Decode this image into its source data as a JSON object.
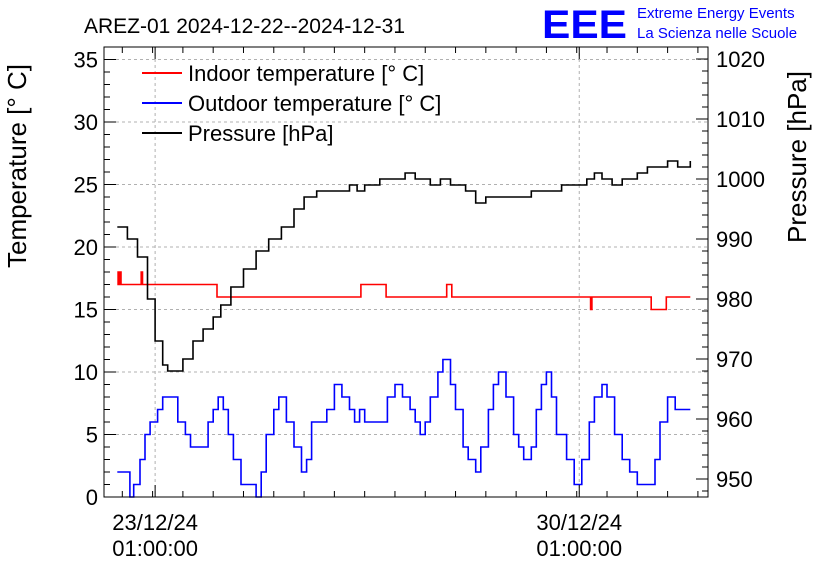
{
  "chart_data": {
    "type": "line",
    "title": "AREZ-01 2024-12-22--2024-12-31",
    "logo": {
      "mark": "EEE",
      "line1": "Extreme Energy Events",
      "line2": "La Scienza nelle Scuole",
      "color": "#0000ff"
    },
    "ylabel_left": "Temperature [° C]",
    "ylabel_right": "Pressure [hPa]",
    "ylim_left": [
      0,
      36
    ],
    "ylim_right": [
      947,
      1022
    ],
    "xlim": [
      "2024-12-22 04:45",
      "2025-01-01 04:00"
    ],
    "x_ticks": [
      {
        "x": "2024-12-23 01:00",
        "line1": "23/12/24",
        "line2": "01:00:00"
      },
      {
        "x": "2024-12-30 01:00",
        "line1": "30/12/24",
        "line2": "01:00:00"
      }
    ],
    "y_ticks_left": [
      "0",
      "5",
      "10",
      "15",
      "20",
      "25",
      "30",
      "35"
    ],
    "y_ticks_right": [
      "950",
      "960",
      "970",
      "980",
      "990",
      "1000",
      "1010",
      "1020"
    ],
    "grid": true,
    "legend_position": "top-left",
    "series": [
      {
        "name": "Indoor temperature [° C]",
        "color": "#ff0000",
        "axis": "left",
        "points": [
          [
            "2024-12-22 10:00",
            17
          ],
          [
            "2024-12-22 10:20",
            18
          ],
          [
            "2024-12-22 10:40",
            17
          ],
          [
            "2024-12-22 11:00",
            18
          ],
          [
            "2024-12-22 11:30",
            17
          ],
          [
            "2024-12-22 19:00",
            17
          ],
          [
            "2024-12-22 19:30",
            18
          ],
          [
            "2024-12-22 20:00",
            17
          ],
          [
            "2024-12-24 01:00",
            17
          ],
          [
            "2024-12-24 01:30",
            16
          ],
          [
            "2024-12-26 10:00",
            16
          ],
          [
            "2024-12-26 10:30",
            17
          ],
          [
            "2024-12-26 20:00",
            17
          ],
          [
            "2024-12-26 20:30",
            16
          ],
          [
            "2024-12-27 20:00",
            16
          ],
          [
            "2024-12-27 20:30",
            17
          ],
          [
            "2024-12-27 22:00",
            17
          ],
          [
            "2024-12-27 22:30",
            16
          ],
          [
            "2024-12-30 05:00",
            16
          ],
          [
            "2024-12-30 05:30",
            15
          ],
          [
            "2024-12-30 06:00",
            16
          ],
          [
            "2024-12-31 05:00",
            16
          ],
          [
            "2024-12-31 05:30",
            15
          ],
          [
            "2024-12-31 11:00",
            15
          ],
          [
            "2024-12-31 11:30",
            16
          ],
          [
            "2024-12-31 21:00",
            16
          ]
        ]
      },
      {
        "name": "Outdoor temperature [° C]",
        "color": "#0000ff",
        "axis": "left",
        "points": [
          [
            "2024-12-22 10:00",
            2
          ],
          [
            "2024-12-22 13:00",
            2
          ],
          [
            "2024-12-22 15:00",
            0
          ],
          [
            "2024-12-22 16:30",
            1
          ],
          [
            "2024-12-22 19:00",
            3
          ],
          [
            "2024-12-22 21:00",
            5
          ],
          [
            "2024-12-22 23:00",
            6
          ],
          [
            "2024-12-23 02:00",
            7
          ],
          [
            "2024-12-23 04:00",
            8
          ],
          [
            "2024-12-23 08:00",
            8
          ],
          [
            "2024-12-23 10:00",
            6
          ],
          [
            "2024-12-23 13:00",
            5
          ],
          [
            "2024-12-23 15:00",
            4
          ],
          [
            "2024-12-23 20:00",
            4
          ],
          [
            "2024-12-23 22:00",
            6
          ],
          [
            "2024-12-24 00:00",
            7
          ],
          [
            "2024-12-24 02:00",
            8
          ],
          [
            "2024-12-24 04:00",
            7
          ],
          [
            "2024-12-24 06:00",
            5
          ],
          [
            "2024-12-24 08:00",
            3
          ],
          [
            "2024-12-24 11:00",
            1
          ],
          [
            "2024-12-24 15:00",
            1
          ],
          [
            "2024-12-24 17:00",
            0
          ],
          [
            "2024-12-24 19:00",
            2
          ],
          [
            "2024-12-24 21:00",
            5
          ],
          [
            "2024-12-25 00:00",
            7
          ],
          [
            "2024-12-25 02:00",
            8
          ],
          [
            "2024-12-25 05:00",
            6
          ],
          [
            "2024-12-25 08:00",
            4
          ],
          [
            "2024-12-25 11:00",
            2
          ],
          [
            "2024-12-25 13:00",
            3
          ],
          [
            "2024-12-25 15:00",
            6
          ],
          [
            "2024-12-25 18:00",
            6
          ],
          [
            "2024-12-25 21:00",
            7
          ],
          [
            "2024-12-26 00:00",
            9
          ],
          [
            "2024-12-26 03:00",
            8
          ],
          [
            "2024-12-26 06:00",
            7
          ],
          [
            "2024-12-26 08:00",
            6
          ],
          [
            "2024-12-26 10:00",
            7
          ],
          [
            "2024-12-26 12:00",
            6
          ],
          [
            "2024-12-26 18:00",
            6
          ],
          [
            "2024-12-26 21:00",
            8
          ],
          [
            "2024-12-27 00:00",
            9
          ],
          [
            "2024-12-27 03:00",
            8
          ],
          [
            "2024-12-27 06:00",
            7
          ],
          [
            "2024-12-27 08:00",
            6
          ],
          [
            "2024-12-27 10:00",
            5
          ],
          [
            "2024-12-27 12:00",
            6
          ],
          [
            "2024-12-27 14:00",
            8
          ],
          [
            "2024-12-27 17:00",
            10
          ],
          [
            "2024-12-27 19:00",
            11
          ],
          [
            "2024-12-27 22:00",
            9
          ],
          [
            "2024-12-28 00:00",
            7
          ],
          [
            "2024-12-28 03:00",
            4
          ],
          [
            "2024-12-28 05:00",
            3
          ],
          [
            "2024-12-28 08:00",
            2
          ],
          [
            "2024-12-28 10:00",
            4
          ],
          [
            "2024-12-28 13:00",
            7
          ],
          [
            "2024-12-28 15:00",
            9
          ],
          [
            "2024-12-28 17:00",
            10
          ],
          [
            "2024-12-28 20:00",
            8
          ],
          [
            "2024-12-28 23:00",
            5
          ],
          [
            "2024-12-29 01:00",
            4
          ],
          [
            "2024-12-29 03:00",
            3
          ],
          [
            "2024-12-29 06:00",
            4
          ],
          [
            "2024-12-29 08:00",
            7
          ],
          [
            "2024-12-29 10:00",
            9
          ],
          [
            "2024-12-29 12:00",
            10
          ],
          [
            "2024-12-29 14:00",
            8
          ],
          [
            "2024-12-29 16:00",
            5
          ],
          [
            "2024-12-29 20:00",
            3
          ],
          [
            "2024-12-29 23:00",
            1
          ],
          [
            "2024-12-30 02:00",
            3
          ],
          [
            "2024-12-30 05:00",
            6
          ],
          [
            "2024-12-30 07:00",
            8
          ],
          [
            "2024-12-30 10:00",
            9
          ],
          [
            "2024-12-30 12:00",
            8
          ],
          [
            "2024-12-30 15:00",
            5
          ],
          [
            "2024-12-30 18:00",
            3
          ],
          [
            "2024-12-30 21:00",
            2
          ],
          [
            "2024-12-31 00:00",
            1
          ],
          [
            "2024-12-31 05:00",
            1
          ],
          [
            "2024-12-31 07:00",
            3
          ],
          [
            "2024-12-31 09:00",
            6
          ],
          [
            "2024-12-31 12:00",
            8
          ],
          [
            "2024-12-31 15:00",
            7
          ],
          [
            "2024-12-31 21:00",
            7
          ]
        ]
      },
      {
        "name": "Pressure [hPa]",
        "color": "#000000",
        "axis": "right",
        "points": [
          [
            "2024-12-22 10:00",
            992
          ],
          [
            "2024-12-22 14:00",
            990
          ],
          [
            "2024-12-22 18:00",
            987
          ],
          [
            "2024-12-22 22:00",
            980
          ],
          [
            "2024-12-23 01:00",
            973
          ],
          [
            "2024-12-23 04:00",
            969
          ],
          [
            "2024-12-23 06:00",
            968
          ],
          [
            "2024-12-23 08:00",
            968
          ],
          [
            "2024-12-23 12:00",
            970
          ],
          [
            "2024-12-23 16:00",
            973
          ],
          [
            "2024-12-23 20:00",
            975
          ],
          [
            "2024-12-24 00:00",
            977
          ],
          [
            "2024-12-24 03:00",
            979
          ],
          [
            "2024-12-24 07:00",
            982
          ],
          [
            "2024-12-24 12:00",
            985
          ],
          [
            "2024-12-24 17:00",
            988
          ],
          [
            "2024-12-24 22:00",
            990
          ],
          [
            "2024-12-25 03:00",
            992
          ],
          [
            "2024-12-25 08:00",
            995
          ],
          [
            "2024-12-25 12:00",
            997
          ],
          [
            "2024-12-25 17:00",
            998
          ],
          [
            "2024-12-25 22:00",
            998
          ],
          [
            "2024-12-26 03:00",
            998
          ],
          [
            "2024-12-26 06:00",
            999
          ],
          [
            "2024-12-26 09:00",
            998
          ],
          [
            "2024-12-26 12:00",
            999
          ],
          [
            "2024-12-26 18:00",
            1000
          ],
          [
            "2024-12-27 00:00",
            1000
          ],
          [
            "2024-12-27 04:00",
            1001
          ],
          [
            "2024-12-27 08:00",
            1000
          ],
          [
            "2024-12-27 14:00",
            999
          ],
          [
            "2024-12-27 18:00",
            1000
          ],
          [
            "2024-12-27 22:00",
            999
          ],
          [
            "2024-12-28 04:00",
            998
          ],
          [
            "2024-12-28 08:00",
            996
          ],
          [
            "2024-12-28 12:00",
            997
          ],
          [
            "2024-12-28 18:00",
            997
          ],
          [
            "2024-12-29 00:00",
            997
          ],
          [
            "2024-12-29 06:00",
            998
          ],
          [
            "2024-12-29 12:00",
            998
          ],
          [
            "2024-12-29 18:00",
            999
          ],
          [
            "2024-12-30 00:00",
            999
          ],
          [
            "2024-12-30 04:00",
            1000
          ],
          [
            "2024-12-30 07:00",
            1001
          ],
          [
            "2024-12-30 10:00",
            1000
          ],
          [
            "2024-12-30 14:00",
            999
          ],
          [
            "2024-12-30 18:00",
            1000
          ],
          [
            "2024-12-31 00:00",
            1001
          ],
          [
            "2024-12-31 04:00",
            1002
          ],
          [
            "2024-12-31 08:00",
            1002
          ],
          [
            "2024-12-31 12:00",
            1003
          ],
          [
            "2024-12-31 16:00",
            1002
          ],
          [
            "2024-12-31 21:00",
            1003
          ]
        ]
      }
    ]
  }
}
